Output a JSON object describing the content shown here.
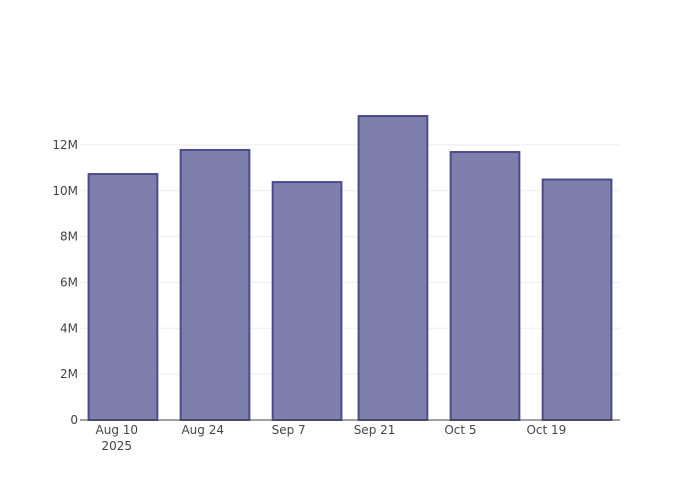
{
  "chart_data": {
    "type": "bar",
    "title": "",
    "xlabel": "",
    "ylabel": "",
    "x": [
      "2025-08-11",
      "2025-08-26",
      "2025-09-10",
      "2025-09-24",
      "2025-10-09",
      "2025-10-24"
    ],
    "values": [
      10730000,
      11780000,
      10380000,
      13260000,
      11690000,
      10490000
    ],
    "bar_width_days": 11.2,
    "xlim": [
      "2025-08-04",
      "2025-10-31"
    ],
    "ylim": [
      0,
      13960000
    ],
    "x_ticks": [
      {
        "date": "2025-08-10",
        "label": "Aug 10",
        "sublabel": "2025"
      },
      {
        "date": "2025-08-24",
        "label": "Aug 24"
      },
      {
        "date": "2025-09-07",
        "label": "Sep 7"
      },
      {
        "date": "2025-09-21",
        "label": "Sep 21"
      },
      {
        "date": "2025-10-05",
        "label": "Oct 5"
      },
      {
        "date": "2025-10-19",
        "label": "Oct 19"
      }
    ],
    "y_ticks": [
      {
        "value": 0,
        "label": "0"
      },
      {
        "value": 2000000,
        "label": "2M"
      },
      {
        "value": 4000000,
        "label": "4M"
      },
      {
        "value": 6000000,
        "label": "6M"
      },
      {
        "value": 8000000,
        "label": "8M"
      },
      {
        "value": 10000000,
        "label": "10M"
      },
      {
        "value": 12000000,
        "label": "12M"
      }
    ],
    "grid": true,
    "colors": {
      "bar_fill": "#7f7fae",
      "bar_outline": "#4b4b8c",
      "grid": "#eeeeee",
      "axis": "#444444"
    }
  }
}
